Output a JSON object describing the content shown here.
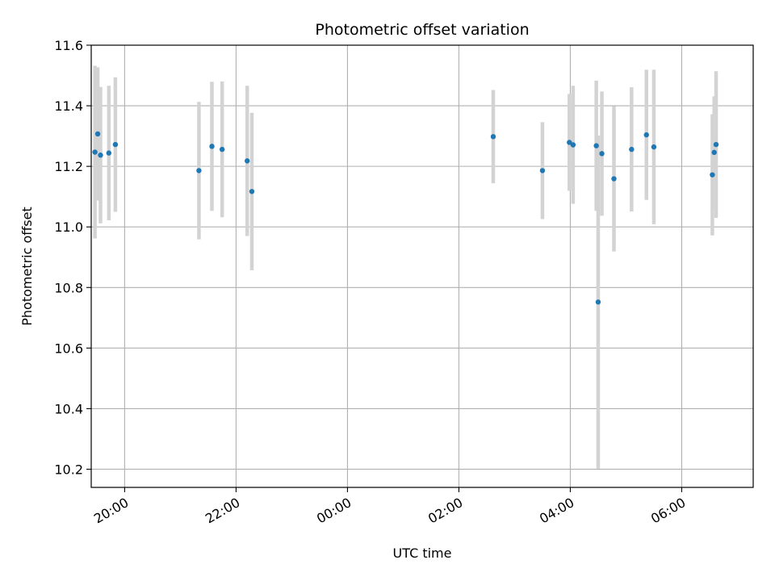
{
  "chart_data": {
    "type": "scatter",
    "title": "Photometric offset variation",
    "xlabel": "UTC time",
    "ylabel": "Photometric offset",
    "ylim": [
      10.14,
      11.6
    ],
    "xlim": [
      "19:24",
      "07:17"
    ],
    "x_ticks": [
      "20:00",
      "22:00",
      "00:00",
      "02:00",
      "04:00",
      "06:00"
    ],
    "y_ticks": [
      10.2,
      10.4,
      10.6,
      10.8,
      11.0,
      11.2,
      11.4,
      11.6
    ],
    "grid": true,
    "colors": {
      "point": "#1f77b4",
      "errorbar": "#d3d3d3",
      "grid": "#b0b0b0"
    },
    "points": [
      {
        "t": "19:28",
        "y": 11.247,
        "err": 0.285
      },
      {
        "t": "19:31",
        "y": 11.307,
        "err": 0.22
      },
      {
        "t": "19:34",
        "y": 11.237,
        "err": 0.225
      },
      {
        "t": "19:43",
        "y": 11.244,
        "err": 0.222
      },
      {
        "t": "19:50",
        "y": 11.272,
        "err": 0.222
      },
      {
        "t": "21:20",
        "y": 11.186,
        "err": 0.227
      },
      {
        "t": "21:34",
        "y": 11.266,
        "err": 0.213
      },
      {
        "t": "21:45",
        "y": 11.256,
        "err": 0.224
      },
      {
        "t": "22:12",
        "y": 11.218,
        "err": 0.248
      },
      {
        "t": "22:17",
        "y": 11.117,
        "err": 0.26
      },
      {
        "t": "02:37",
        "y": 11.298,
        "err": 0.154
      },
      {
        "t": "03:30",
        "y": 11.186,
        "err": 0.16
      },
      {
        "t": "03:59",
        "y": 11.279,
        "err": 0.16
      },
      {
        "t": "04:03",
        "y": 11.271,
        "err": 0.195
      },
      {
        "t": "04:28",
        "y": 11.268,
        "err": 0.215
      },
      {
        "t": "04:30",
        "y": 10.752,
        "err": 0.55
      },
      {
        "t": "04:34",
        "y": 11.242,
        "err": 0.205
      },
      {
        "t": "04:47",
        "y": 11.159,
        "err": 0.24
      },
      {
        "t": "05:06",
        "y": 11.256,
        "err": 0.205
      },
      {
        "t": "05:22",
        "y": 11.304,
        "err": 0.215
      },
      {
        "t": "05:30",
        "y": 11.264,
        "err": 0.255
      },
      {
        "t": "06:33",
        "y": 11.172,
        "err": 0.2
      },
      {
        "t": "06:35",
        "y": 11.246,
        "err": 0.185
      },
      {
        "t": "06:37",
        "y": 11.272,
        "err": 0.242
      }
    ]
  }
}
